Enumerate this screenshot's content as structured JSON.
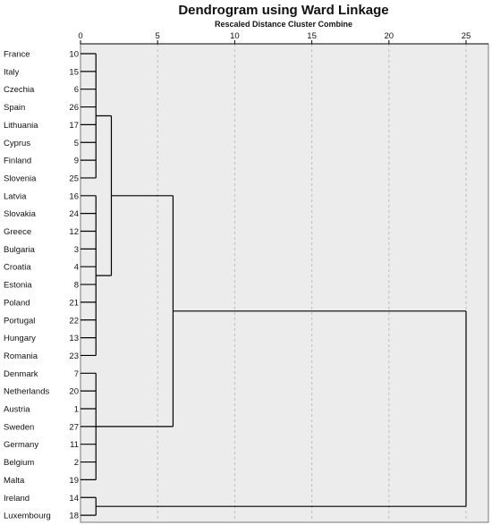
{
  "title": "Dendrogram using Ward Linkage",
  "subtitle": "Rescaled Distance Cluster Combine",
  "x_ticks": [
    "0",
    "5",
    "10",
    "15",
    "20",
    "25"
  ],
  "leaves": [
    {
      "label": "France",
      "case": "10"
    },
    {
      "label": "Italy",
      "case": "15"
    },
    {
      "label": "Czechia",
      "case": "6"
    },
    {
      "label": "Spain",
      "case": "26"
    },
    {
      "label": "Lithuania",
      "case": "17"
    },
    {
      "label": "Cyprus",
      "case": "5"
    },
    {
      "label": "Finland",
      "case": "9"
    },
    {
      "label": "Slovenia",
      "case": "25"
    },
    {
      "label": "Latvia",
      "case": "16"
    },
    {
      "label": "Slovakia",
      "case": "24"
    },
    {
      "label": "Greece",
      "case": "12"
    },
    {
      "label": "Bulgaria",
      "case": "3"
    },
    {
      "label": "Croatia",
      "case": "4"
    },
    {
      "label": "Estonia",
      "case": "8"
    },
    {
      "label": "Poland",
      "case": "21"
    },
    {
      "label": "Portugal",
      "case": "22"
    },
    {
      "label": "Hungary",
      "case": "13"
    },
    {
      "label": "Romania",
      "case": "23"
    },
    {
      "label": "Denmark",
      "case": "7"
    },
    {
      "label": "Netherlands",
      "case": "20"
    },
    {
      "label": "Austria",
      "case": "1"
    },
    {
      "label": "Sweden",
      "case": "27"
    },
    {
      "label": "Germany",
      "case": "11"
    },
    {
      "label": "Belgium",
      "case": "2"
    },
    {
      "label": "Malta",
      "case": "19"
    },
    {
      "label": "Ireland",
      "case": "14"
    },
    {
      "label": "Luxembourg",
      "case": "18"
    }
  ],
  "merges": [
    {
      "name": "cluster-a",
      "span": [
        0,
        7
      ],
      "distance": 1
    },
    {
      "name": "cluster-b",
      "span": [
        8,
        17
      ],
      "distance": 1
    },
    {
      "name": "cluster-c",
      "span": [
        18,
        24
      ],
      "distance": 1
    },
    {
      "name": "cluster-d",
      "span": [
        25,
        26
      ],
      "distance": 1
    },
    {
      "name": "cluster-ab",
      "children": [
        "cluster-a",
        "cluster-b"
      ],
      "distance": 2
    },
    {
      "name": "cluster-abc",
      "children": [
        "cluster-ab",
        "cluster-c"
      ],
      "distance": 6
    },
    {
      "name": "cluster-all",
      "children": [
        "cluster-abc",
        "cluster-d"
      ],
      "distance": 25
    }
  ],
  "colors": {
    "plot_background": "#ececec",
    "gridline": "#bdbdbd",
    "line": "#000000"
  }
}
